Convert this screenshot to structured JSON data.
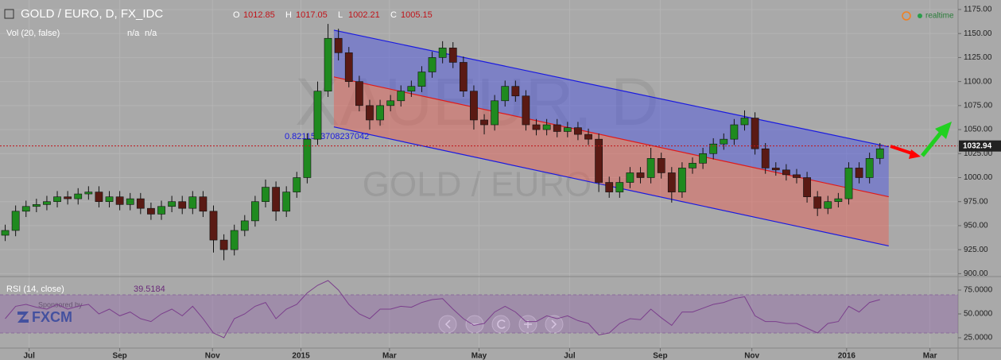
{
  "chart_data": {
    "type": "candlestick",
    "title": "GOLD / EURO, D, FX_IDC",
    "legend_values": [
      {
        "label": "O",
        "value": "1012.85"
      },
      {
        "label": "H",
        "value": "1017.05"
      },
      {
        "label": "L",
        "value": "1002.21"
      },
      {
        "label": "C",
        "value": "1005.15"
      }
    ],
    "status": "realtime",
    "volume": {
      "name": "Vol (20, false)",
      "values": [
        "n/a",
        "n/a"
      ]
    },
    "watermark": [
      "XAUEUR, D",
      "GOLD / EURO"
    ],
    "sponsor": {
      "text": "Sponsored by",
      "brand": "FXCM"
    },
    "up_color": "#1f8a1f",
    "down_color": "#5a1a14",
    "x": [
      0.5,
      1.5,
      2.5,
      3.5,
      4.5,
      5.5,
      6.5,
      7.5,
      8.5,
      9.5,
      10.5,
      11.5,
      12.5,
      13.5,
      14.5,
      15.5,
      16.5,
      17.5,
      18.5,
      19.5,
      20.5,
      21.5,
      22.5,
      23.5,
      24.5,
      25.5,
      26.5,
      27.5,
      28.5,
      29.5,
      30.5,
      31.5,
      32.5,
      33.5,
      34.5,
      35.5,
      36.5,
      37.5,
      38.5,
      39.5,
      40.5,
      41.5,
      42.5,
      43.5,
      44.5,
      45.5,
      46.5,
      47.5,
      48.5,
      49.5,
      50.5,
      51.5,
      52.5,
      53.5,
      54.5,
      55.5,
      56.5,
      57.5,
      58.5,
      59.5,
      60.5,
      61.5,
      62.5,
      63.5,
      64.5,
      65.5,
      66.5,
      67.5,
      68.5,
      69.5,
      70.5,
      71.5,
      72.5,
      73.5,
      74.5,
      75.5,
      76.5,
      77.5,
      78.5,
      79.5,
      80.5,
      81.5,
      82.5,
      83.5,
      84.5
    ],
    "open": [
      940,
      945,
      965,
      970,
      972,
      975,
      980,
      978,
      983,
      985,
      975,
      980,
      972,
      978,
      968,
      962,
      970,
      975,
      968,
      980,
      965,
      935,
      925,
      945,
      955,
      975,
      990,
      965,
      985,
      1000,
      1040,
      1090,
      1145,
      1130,
      1100,
      1075,
      1060,
      1075,
      1080,
      1090,
      1095,
      1110,
      1125,
      1135,
      1120,
      1090,
      1060,
      1055,
      1080,
      1095,
      1085,
      1055,
      1050,
      1055,
      1048,
      1052,
      1045,
      1040,
      995,
      985,
      995,
      1005,
      1000,
      1020,
      1005,
      985,
      1010,
      1015,
      1025,
      1035,
      1040,
      1055,
      1062,
      1030,
      1010,
      1008,
      1003,
      1000,
      980,
      968,
      975,
      978,
      1010,
      1000,
      1020
    ],
    "high": [
      951,
      971,
      976,
      978,
      981,
      986,
      986,
      989,
      991,
      991,
      986,
      986,
      984,
      984,
      974,
      976,
      981,
      981,
      986,
      986,
      971,
      941,
      951,
      961,
      981,
      998,
      996,
      991,
      1006,
      1046,
      1100,
      1160,
      1155,
      1136,
      1106,
      1081,
      1081,
      1086,
      1096,
      1101,
      1116,
      1131,
      1142,
      1141,
      1126,
      1096,
      1066,
      1086,
      1101,
      1101,
      1091,
      1061,
      1061,
      1061,
      1058,
      1058,
      1051,
      1046,
      1001,
      1001,
      1011,
      1011,
      1031,
      1026,
      1011,
      1016,
      1021,
      1031,
      1041,
      1046,
      1061,
      1070,
      1068,
      1036,
      1016,
      1014,
      1009,
      1006,
      986,
      981,
      984,
      1016,
      1016,
      1026,
      1036
    ],
    "low": [
      934,
      939,
      959,
      964,
      966,
      969,
      972,
      972,
      977,
      969,
      969,
      966,
      966,
      962,
      956,
      956,
      964,
      962,
      962,
      959,
      922,
      914,
      919,
      939,
      949,
      969,
      955,
      959,
      979,
      994,
      1034,
      1084,
      1122,
      1094,
      1069,
      1050,
      1054,
      1069,
      1074,
      1084,
      1089,
      1104,
      1119,
      1114,
      1084,
      1050,
      1045,
      1049,
      1074,
      1079,
      1049,
      1044,
      1044,
      1042,
      1042,
      1039,
      1034,
      985,
      979,
      979,
      989,
      994,
      994,
      999,
      974,
      979,
      1004,
      1009,
      1019,
      1029,
      1034,
      1049,
      1024,
      1004,
      1002,
      997,
      994,
      974,
      960,
      962,
      969,
      972,
      994,
      994,
      1014
    ],
    "close": [
      945,
      965,
      970,
      972,
      975,
      980,
      978,
      983,
      985,
      975,
      980,
      972,
      978,
      968,
      962,
      970,
      975,
      968,
      980,
      965,
      935,
      925,
      945,
      955,
      975,
      990,
      965,
      985,
      1000,
      1040,
      1090,
      1145,
      1130,
      1100,
      1075,
      1060,
      1075,
      1080,
      1090,
      1095,
      1110,
      1125,
      1135,
      1120,
      1090,
      1060,
      1055,
      1080,
      1095,
      1085,
      1055,
      1050,
      1055,
      1048,
      1052,
      1045,
      1040,
      995,
      985,
      995,
      1005,
      1000,
      1020,
      1005,
      985,
      1010,
      1015,
      1025,
      1035,
      1040,
      1055,
      1062,
      1030,
      1010,
      1008,
      1003,
      1000,
      980,
      968,
      975,
      978,
      1010,
      1000,
      1020,
      1030
    ],
    "xlim": [
      0,
      92
    ],
    "xticks": [
      {
        "value": 2.8,
        "label": "Jul"
      },
      {
        "value": 11.5,
        "label": "Sep"
      },
      {
        "value": 20.4,
        "label": "Nov"
      },
      {
        "value": 28.9,
        "label": "2015"
      },
      {
        "value": 37.4,
        "label": "Mar"
      },
      {
        "value": 46,
        "label": "May"
      },
      {
        "value": 54.7,
        "label": "Jul"
      },
      {
        "value": 63.4,
        "label": "Sep"
      },
      {
        "value": 72.2,
        "label": "Nov"
      },
      {
        "value": 81.3,
        "label": "2016"
      },
      {
        "value": 89.3,
        "label": "Mar"
      }
    ],
    "ylim": [
      897,
      1184.9
    ],
    "yticks": [
      {
        "value": 900,
        "label": "900.00"
      },
      {
        "value": 925,
        "label": "925.00"
      },
      {
        "value": 950,
        "label": "950.00"
      },
      {
        "value": 975,
        "label": "975.00"
      },
      {
        "value": 1000,
        "label": "1000.00"
      },
      {
        "value": 1025,
        "label": "1025.00"
      },
      {
        "value": 1050,
        "label": "1050.00"
      },
      {
        "value": 1075,
        "label": "1075.00"
      },
      {
        "value": 1100,
        "label": "1100.00"
      },
      {
        "value": 1125,
        "label": "1125.00"
      },
      {
        "value": 1150,
        "label": "1150.00"
      },
      {
        "value": 1175,
        "label": "1175.00"
      }
    ],
    "last_price": {
      "value": 1032.94,
      "label": "1032.94"
    },
    "channel": {
      "x": [
        32.06,
        85.34
      ],
      "upper": [
        1153.5,
        1032.1
      ],
      "middle": [
        1104.8,
        980.1
      ],
      "lower": [
        1052.8,
        928.9
      ],
      "label": "0.8211563708237042"
    },
    "rsi": {
      "name": "RSI (14, close)",
      "last": "39.5184",
      "color": "#7b3f8c",
      "ylim": [
        12.5,
        87.5
      ],
      "band": [
        30,
        70
      ],
      "yticks": [
        {
          "value": 25,
          "label": "25.0000"
        },
        {
          "value": 50,
          "label": "50.0000"
        },
        {
          "value": 75,
          "label": "75.0000"
        }
      ],
      "values": [
        45,
        58,
        60,
        57,
        55,
        60,
        55,
        58,
        60,
        50,
        55,
        48,
        52,
        45,
        42,
        50,
        55,
        48,
        58,
        45,
        30,
        25,
        45,
        50,
        58,
        62,
        45,
        55,
        60,
        72,
        80,
        85,
        75,
        60,
        50,
        45,
        55,
        55,
        58,
        57,
        62,
        65,
        66,
        55,
        45,
        38,
        40,
        52,
        58,
        52,
        42,
        42,
        48,
        45,
        48,
        43,
        40,
        28,
        30,
        40,
        45,
        44,
        55,
        46,
        38,
        52,
        52,
        56,
        60,
        62,
        66,
        68,
        48,
        42,
        42,
        40,
        40,
        35,
        30,
        40,
        42,
        58,
        52,
        62,
        65
      ]
    }
  }
}
